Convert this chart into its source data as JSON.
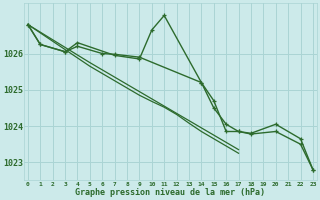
{
  "title": "Graphe pression niveau de la mer (hPa)",
  "bg_color": "#cceaea",
  "grid_color": "#aad4d4",
  "line_color": "#2d6b2d",
  "ylim": [
    1022.5,
    1027.4
  ],
  "yticks": [
    1023,
    1024,
    1025,
    1026
  ],
  "xlim": [
    -0.3,
    23.3
  ],
  "series": [
    {
      "x": [
        0,
        1,
        3,
        4,
        7,
        9,
        10,
        11,
        14,
        15,
        16,
        17,
        18,
        20,
        22,
        23
      ],
      "y": [
        1026.8,
        1026.25,
        1026.05,
        1026.3,
        1025.95,
        1025.85,
        1026.65,
        1027.05,
        1025.2,
        1024.7,
        1023.85,
        1023.85,
        1023.8,
        1024.05,
        1023.65,
        1022.8
      ],
      "marker": true,
      "linestyle": "-",
      "linewidth": 1.0
    },
    {
      "x": [
        0,
        1,
        3,
        4,
        6,
        7,
        9,
        14,
        15,
        16,
        17,
        18,
        20,
        22,
        23
      ],
      "y": [
        1026.8,
        1026.25,
        1026.05,
        1026.2,
        1026.0,
        1025.98,
        1025.9,
        1025.2,
        1024.5,
        1024.05,
        1023.85,
        1023.78,
        1023.85,
        1023.5,
        1022.8
      ],
      "marker": true,
      "linestyle": "-",
      "linewidth": 1.0
    },
    {
      "x": [
        0,
        5,
        6,
        7,
        8,
        9,
        10,
        11,
        12,
        13,
        14,
        15,
        16,
        17
      ],
      "y": [
        1026.8,
        1025.75,
        1025.55,
        1025.35,
        1025.15,
        1024.95,
        1024.75,
        1024.55,
        1024.35,
        1024.15,
        1023.95,
        1023.75,
        1023.55,
        1023.35
      ],
      "marker": false,
      "linestyle": "-",
      "linewidth": 0.9
    },
    {
      "x": [
        0,
        5,
        6,
        7,
        8,
        9,
        10,
        11,
        12,
        13,
        14,
        15,
        16,
        17
      ],
      "y": [
        1026.8,
        1025.65,
        1025.45,
        1025.25,
        1025.05,
        1024.85,
        1024.68,
        1024.52,
        1024.32,
        1024.08,
        1023.85,
        1023.65,
        1023.45,
        1023.25
      ],
      "marker": false,
      "linestyle": "-",
      "linewidth": 0.9
    }
  ]
}
